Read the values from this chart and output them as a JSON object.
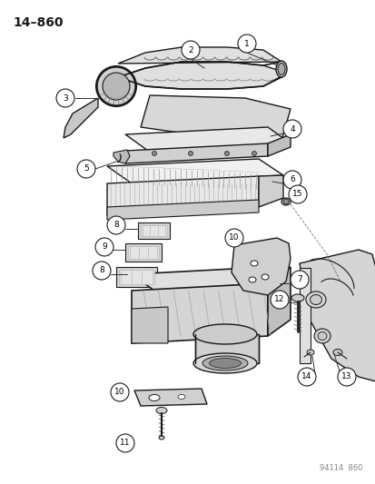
{
  "title": "14–860",
  "watermark": "94114  860",
  "bg": "#ffffff",
  "lc": "#1a1a1a",
  "fig_w": 4.14,
  "fig_h": 5.33,
  "dpi": 100
}
